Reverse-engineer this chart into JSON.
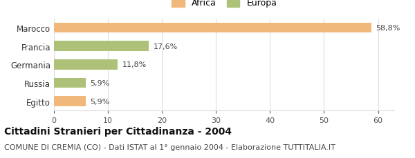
{
  "categories": [
    "Egitto",
    "Russia",
    "Germania",
    "Francia",
    "Marocco"
  ],
  "values": [
    5.9,
    5.9,
    11.8,
    17.6,
    58.8
  ],
  "labels": [
    "5,9%",
    "5,9%",
    "11,8%",
    "17,6%",
    "58,8%"
  ],
  "colors": [
    "#f0b87a",
    "#adc178",
    "#adc178",
    "#adc178",
    "#f0b87a"
  ],
  "legend": [
    {
      "label": "Africa",
      "color": "#f0b87a"
    },
    {
      "label": "Europa",
      "color": "#adc178"
    }
  ],
  "xlim": [
    0,
    63
  ],
  "xticks": [
    0,
    10,
    20,
    30,
    40,
    50,
    60
  ],
  "title": "Cittadini Stranieri per Cittadinanza - 2004",
  "subtitle": "COMUNE DI CREMIA (CO) - Dati ISTAT al 1° gennaio 2004 - Elaborazione TUTTITALIA.IT",
  "title_fontsize": 10,
  "subtitle_fontsize": 8,
  "bar_height": 0.55,
  "background_color": "#ffffff",
  "grid_color": "#dddddd"
}
